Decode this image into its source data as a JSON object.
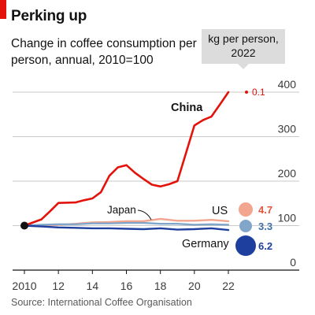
{
  "header": {
    "title": "Perking up",
    "subtitle": "Change in coffee consumption per person, annual, 2010=100",
    "callout": "kg per person, 2022"
  },
  "source": "Source: International Coffee Organisation",
  "chart_data": {
    "type": "line",
    "xlim": [
      2010,
      2022
    ],
    "ylim": [
      0,
      400
    ],
    "x_ticks": [
      2010,
      2012,
      2014,
      2016,
      2018,
      2020,
      2022
    ],
    "x_tick_labels": [
      "2010",
      "12",
      "14",
      "16",
      "18",
      "20",
      "22"
    ],
    "y_ticks": [
      0,
      100,
      200,
      300,
      400
    ],
    "y_tick_labels": [
      "0",
      "100",
      "200",
      "300",
      "400"
    ],
    "grid": "horizontal",
    "series": [
      {
        "name": "China",
        "color": "#e3120b",
        "kg_per_person_2022": "0.1",
        "x": [
          2010,
          2010.5,
          2011,
          2011.5,
          2012,
          2013,
          2013.5,
          2014,
          2014.5,
          2015,
          2015.5,
          2016,
          2016.5,
          2017,
          2017.5,
          2018,
          2018.5,
          2019,
          2019.5,
          2020,
          2020.5,
          2021,
          2021.5,
          2022
        ],
        "y": [
          100,
          107,
          114,
          132,
          151,
          152,
          157,
          161,
          175,
          212,
          231,
          236,
          219,
          205,
          192,
          188,
          193,
          200,
          262,
          325,
          337,
          345,
          372,
          400
        ]
      },
      {
        "name": "US",
        "color": "#f2a58f",
        "kg_per_person_2022": "4.7",
        "x": [
          2010,
          2011,
          2012,
          2013,
          2014,
          2015,
          2016,
          2017,
          2018,
          2019,
          2020,
          2021,
          2022
        ],
        "y": [
          100,
          100,
          102,
          104,
          107,
          108,
          110,
          110,
          115,
          111,
          111,
          113,
          110
        ]
      },
      {
        "name": "Japan",
        "color": "#82a6c9",
        "kg_per_person_2022": "3.3",
        "x": [
          2010,
          2011,
          2012,
          2013,
          2014,
          2015,
          2016,
          2017,
          2018,
          2019,
          2020,
          2021,
          2022
        ],
        "y": [
          100,
          102,
          103,
          103,
          105,
          105,
          106,
          106,
          104,
          104,
          102,
          103,
          102
        ]
      },
      {
        "name": "Germany",
        "color": "#1f3f9e",
        "kg_per_person_2022": "6.2",
        "x": [
          2010,
          2011,
          2012,
          2013,
          2014,
          2015,
          2016,
          2017,
          2018,
          2019,
          2020,
          2021,
          2022
        ],
        "y": [
          100,
          98,
          96,
          95,
          94,
          94,
          93,
          92,
          94,
          91,
          92,
          94,
          90
        ]
      }
    ]
  }
}
